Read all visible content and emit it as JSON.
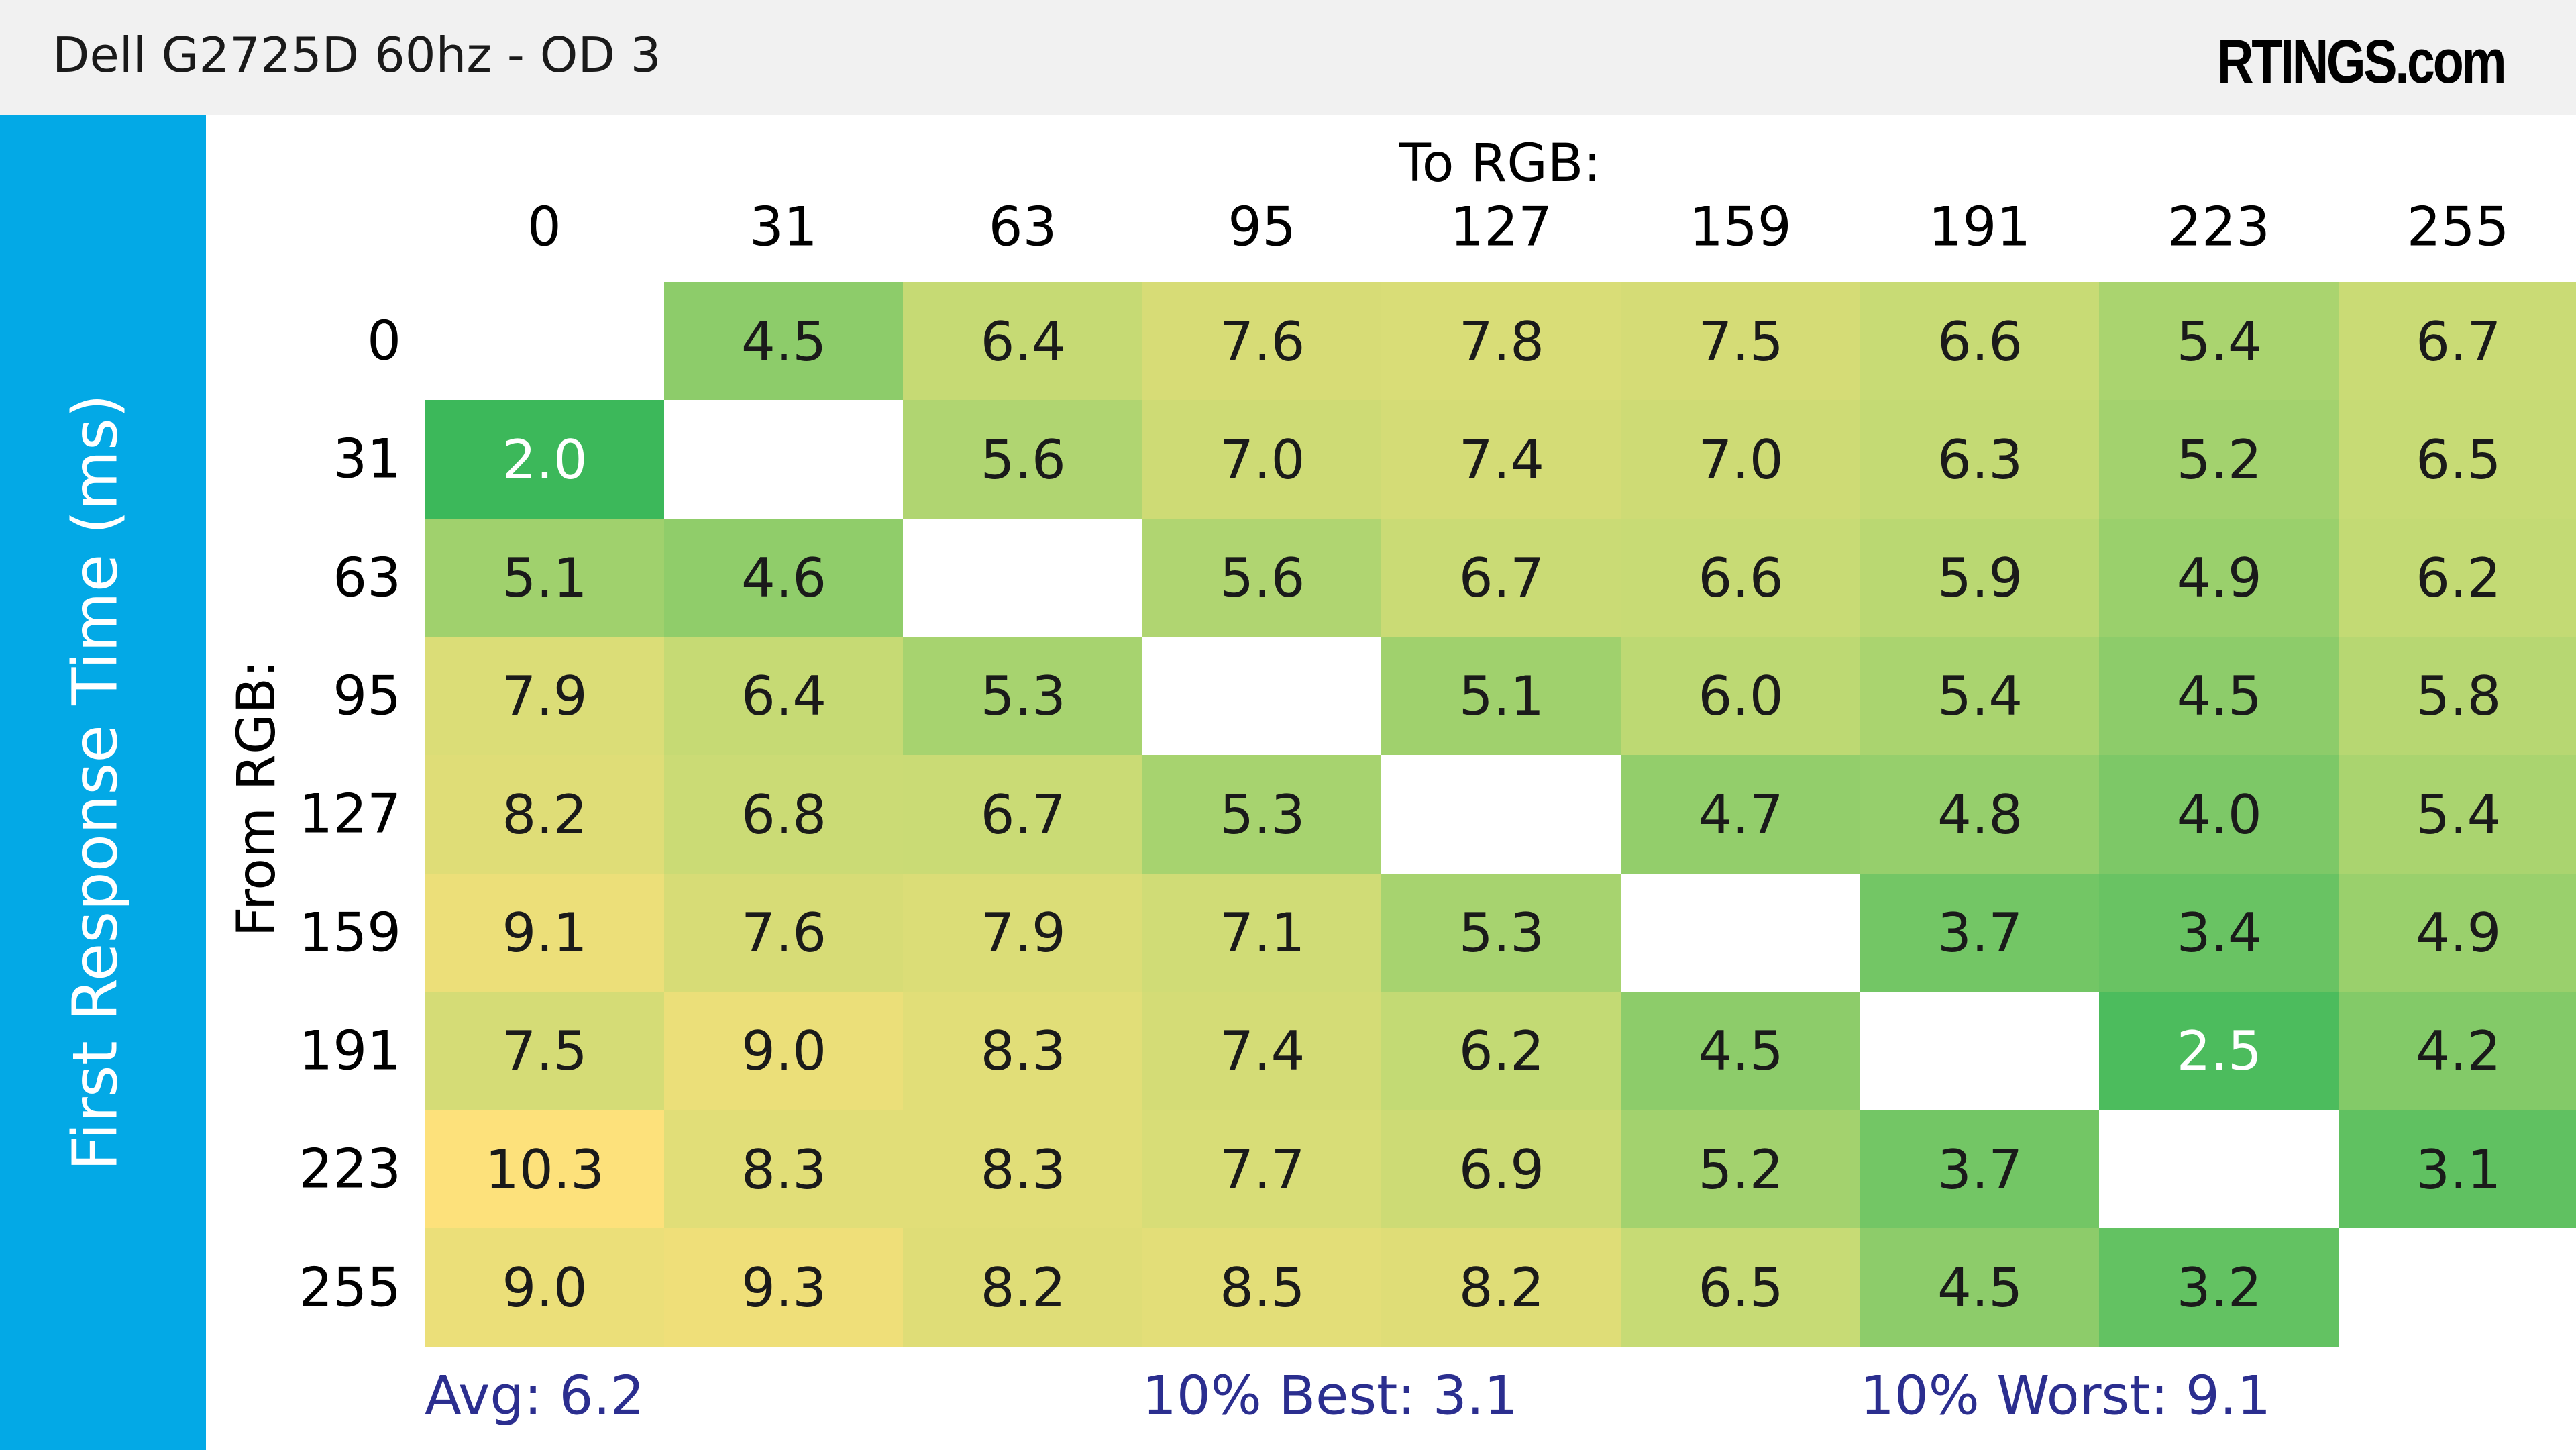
{
  "header": {
    "title": "Dell G2725D 60hz - OD 3",
    "brand": "RTINGS.com"
  },
  "colors": {
    "header_bg": "#f1f1f1",
    "side_band": "#03a9e6",
    "summary_text": "#2b2e8f",
    "scale_best": "#3cb85a",
    "scale_mid": "#c2da74",
    "scale_worst": "#fde17b"
  },
  "chart_data": {
    "type": "heatmap",
    "title": "Dell G2725D 60hz - OD 3",
    "ylabel": "First Response Time (ms)",
    "row_axis_label": "From RGB:",
    "col_axis_label": "To RGB:",
    "rows": [
      "0",
      "31",
      "63",
      "95",
      "127",
      "159",
      "191",
      "223",
      "255"
    ],
    "cols": [
      "0",
      "31",
      "63",
      "95",
      "127",
      "159",
      "191",
      "223",
      "255"
    ],
    "values": [
      [
        null,
        4.5,
        6.4,
        7.6,
        7.8,
        7.5,
        6.6,
        5.4,
        6.7
      ],
      [
        2.0,
        null,
        5.6,
        7.0,
        7.4,
        7.0,
        6.3,
        5.2,
        6.5
      ],
      [
        5.1,
        4.6,
        null,
        5.6,
        6.7,
        6.6,
        5.9,
        4.9,
        6.2
      ],
      [
        7.9,
        6.4,
        5.3,
        null,
        5.1,
        6.0,
        5.4,
        4.5,
        5.8
      ],
      [
        8.2,
        6.8,
        6.7,
        5.3,
        null,
        4.7,
        4.8,
        4.0,
        5.4
      ],
      [
        9.1,
        7.6,
        7.9,
        7.1,
        5.3,
        null,
        3.7,
        3.4,
        4.9
      ],
      [
        7.5,
        9.0,
        8.3,
        7.4,
        6.2,
        4.5,
        null,
        2.5,
        4.2
      ],
      [
        10.3,
        8.3,
        8.3,
        7.7,
        6.9,
        5.2,
        3.7,
        null,
        3.1
      ],
      [
        9.0,
        9.3,
        8.2,
        8.5,
        8.2,
        6.5,
        4.5,
        3.2,
        null
      ]
    ],
    "summary": {
      "avg": "Avg: 6.2",
      "best": "10% Best: 3.1",
      "worst": "10% Worst: 9.1"
    }
  }
}
